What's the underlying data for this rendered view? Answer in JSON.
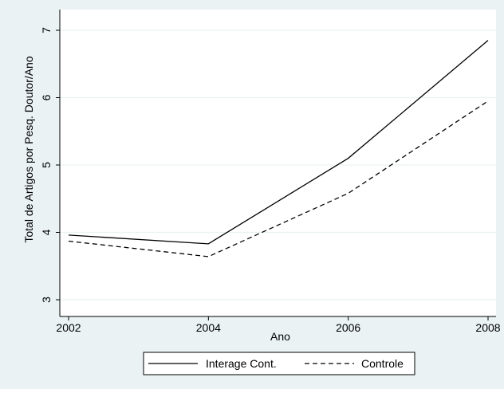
{
  "chart_data": {
    "type": "line",
    "title": "",
    "xlabel": "Ano",
    "ylabel": "Total de Artigos por Pesq. Doutor/Ano",
    "x": [
      2002,
      2004,
      2006,
      2008
    ],
    "xlim": [
      2002,
      2008
    ],
    "ylim": [
      3,
      7
    ],
    "xticks": [
      2002,
      2004,
      2006,
      2008
    ],
    "yticks": [
      3,
      4,
      5,
      6,
      7
    ],
    "grid": true,
    "legend_position": "bottom",
    "series": [
      {
        "name": "Interage Cont.",
        "style": "solid",
        "color": "#000000",
        "values": [
          3.96,
          3.83,
          5.1,
          6.85
        ]
      },
      {
        "name": "Controle",
        "style": "dashed",
        "color": "#000000",
        "values": [
          3.87,
          3.64,
          4.58,
          5.95
        ]
      }
    ],
    "colors": {
      "outer_background": "#eaf2f3",
      "plot_background": "#ffffff",
      "grid": "#eaf2f3"
    }
  }
}
